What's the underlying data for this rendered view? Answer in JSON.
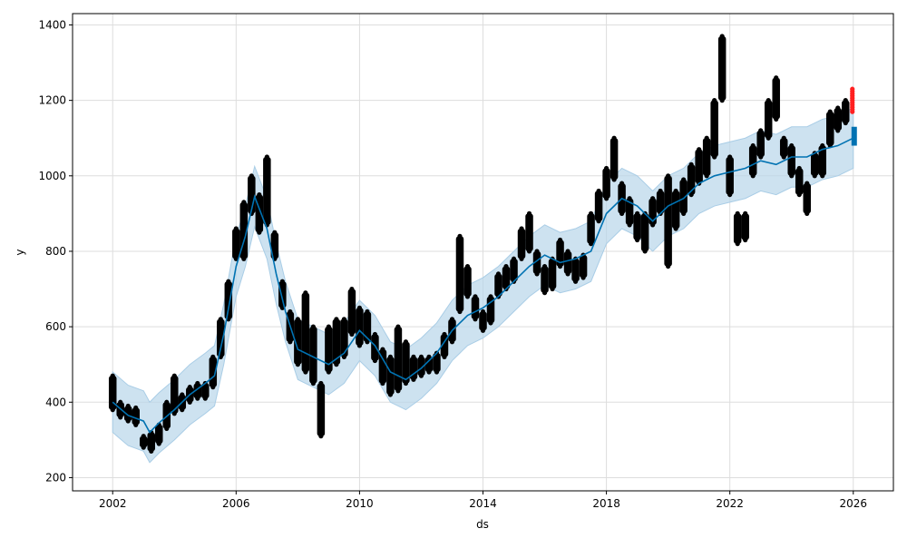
{
  "chart_data": {
    "type": "line",
    "xlabel": "ds",
    "ylabel": "y",
    "xlim": [
      2000.7,
      2027.3
    ],
    "ylim": [
      165,
      1430
    ],
    "xticks": [
      "2002",
      "2006",
      "2010",
      "2014",
      "2018",
      "2022",
      "2026"
    ],
    "yticks": [
      "200",
      "400",
      "600",
      "800",
      "1000",
      "1200",
      "1400"
    ],
    "grid": true,
    "colors": {
      "actual": "#000000",
      "forecast_line": "#0072B2",
      "band": "#b8d6ea",
      "recent_points": "#ff2020"
    },
    "forecast_yhat": [
      [
        2002.0,
        400
      ],
      [
        2002.5,
        365
      ],
      [
        2003.0,
        350
      ],
      [
        2003.2,
        320
      ],
      [
        2003.5,
        345
      ],
      [
        2004.0,
        380
      ],
      [
        2004.5,
        420
      ],
      [
        2005.0,
        450
      ],
      [
        2005.3,
        470
      ],
      [
        2005.6,
        580
      ],
      [
        2006.0,
        760
      ],
      [
        2006.3,
        840
      ],
      [
        2006.6,
        945
      ],
      [
        2007.0,
        860
      ],
      [
        2007.3,
        740
      ],
      [
        2007.6,
        640
      ],
      [
        2008.0,
        540
      ],
      [
        2008.5,
        520
      ],
      [
        2009.0,
        500
      ],
      [
        2009.5,
        530
      ],
      [
        2010.0,
        590
      ],
      [
        2010.5,
        550
      ],
      [
        2011.0,
        480
      ],
      [
        2011.5,
        460
      ],
      [
        2012.0,
        490
      ],
      [
        2012.5,
        530
      ],
      [
        2013.0,
        590
      ],
      [
        2013.5,
        630
      ],
      [
        2014.0,
        650
      ],
      [
        2014.5,
        680
      ],
      [
        2015.0,
        720
      ],
      [
        2015.5,
        760
      ],
      [
        2016.0,
        790
      ],
      [
        2016.5,
        770
      ],
      [
        2017.0,
        780
      ],
      [
        2017.5,
        800
      ],
      [
        2018.0,
        900
      ],
      [
        2018.5,
        940
      ],
      [
        2019.0,
        920
      ],
      [
        2019.5,
        880
      ],
      [
        2020.0,
        920
      ],
      [
        2020.5,
        940
      ],
      [
        2021.0,
        980
      ],
      [
        2021.5,
        1000
      ],
      [
        2022.0,
        1010
      ],
      [
        2022.5,
        1020
      ],
      [
        2023.0,
        1040
      ],
      [
        2023.5,
        1030
      ],
      [
        2024.0,
        1050
      ],
      [
        2024.5,
        1050
      ],
      [
        2025.0,
        1070
      ],
      [
        2025.5,
        1080
      ],
      [
        2026.0,
        1100
      ]
    ],
    "band_halfwidth": 80,
    "actual_ranges": [
      [
        2002.0,
        380,
        470
      ],
      [
        2002.25,
        360,
        400
      ],
      [
        2002.5,
        350,
        390
      ],
      [
        2002.75,
        340,
        385
      ],
      [
        2003.0,
        280,
        310
      ],
      [
        2003.25,
        270,
        320
      ],
      [
        2003.5,
        290,
        340
      ],
      [
        2003.75,
        330,
        400
      ],
      [
        2004.0,
        370,
        470
      ],
      [
        2004.25,
        380,
        420
      ],
      [
        2004.5,
        400,
        440
      ],
      [
        2004.75,
        410,
        450
      ],
      [
        2005.0,
        410,
        450
      ],
      [
        2005.25,
        440,
        520
      ],
      [
        2005.5,
        520,
        620
      ],
      [
        2005.75,
        620,
        720
      ],
      [
        2006.0,
        780,
        860
      ],
      [
        2006.25,
        780,
        930
      ],
      [
        2006.5,
        900,
        1000
      ],
      [
        2006.75,
        850,
        950
      ],
      [
        2007.0,
        870,
        1050
      ],
      [
        2007.25,
        780,
        850
      ],
      [
        2007.5,
        650,
        720
      ],
      [
        2007.75,
        560,
        640
      ],
      [
        2008.0,
        500,
        620
      ],
      [
        2008.25,
        480,
        690
      ],
      [
        2008.5,
        450,
        600
      ],
      [
        2008.75,
        310,
        450
      ],
      [
        2009.0,
        480,
        600
      ],
      [
        2009.25,
        500,
        620
      ],
      [
        2009.5,
        520,
        620
      ],
      [
        2009.75,
        580,
        700
      ],
      [
        2010.0,
        550,
        650
      ],
      [
        2010.25,
        560,
        640
      ],
      [
        2010.5,
        510,
        580
      ],
      [
        2010.75,
        450,
        540
      ],
      [
        2011.0,
        420,
        520
      ],
      [
        2011.25,
        430,
        600
      ],
      [
        2011.5,
        450,
        560
      ],
      [
        2011.75,
        460,
        520
      ],
      [
        2012.0,
        470,
        520
      ],
      [
        2012.25,
        480,
        520
      ],
      [
        2012.5,
        480,
        530
      ],
      [
        2012.75,
        520,
        580
      ],
      [
        2013.0,
        560,
        620
      ],
      [
        2013.25,
        640,
        840
      ],
      [
        2013.5,
        680,
        760
      ],
      [
        2013.75,
        620,
        680
      ],
      [
        2014.0,
        590,
        640
      ],
      [
        2014.25,
        610,
        680
      ],
      [
        2014.5,
        680,
        740
      ],
      [
        2014.75,
        700,
        760
      ],
      [
        2015.0,
        720,
        780
      ],
      [
        2015.25,
        780,
        860
      ],
      [
        2015.5,
        800,
        900
      ],
      [
        2015.75,
        740,
        800
      ],
      [
        2016.0,
        690,
        760
      ],
      [
        2016.25,
        700,
        780
      ],
      [
        2016.5,
        760,
        830
      ],
      [
        2016.75,
        740,
        800
      ],
      [
        2017.0,
        720,
        780
      ],
      [
        2017.25,
        730,
        790
      ],
      [
        2017.5,
        820,
        900
      ],
      [
        2017.75,
        880,
        960
      ],
      [
        2018.0,
        940,
        1020
      ],
      [
        2018.25,
        990,
        1100
      ],
      [
        2018.5,
        900,
        980
      ],
      [
        2018.75,
        870,
        940
      ],
      [
        2019.0,
        830,
        900
      ],
      [
        2019.25,
        800,
        900
      ],
      [
        2019.5,
        870,
        940
      ],
      [
        2019.75,
        900,
        960
      ],
      [
        2020.0,
        760,
        1000
      ],
      [
        2020.25,
        860,
        960
      ],
      [
        2020.5,
        900,
        990
      ],
      [
        2020.75,
        950,
        1030
      ],
      [
        2021.0,
        980,
        1070
      ],
      [
        2021.25,
        1000,
        1100
      ],
      [
        2021.5,
        1050,
        1200
      ],
      [
        2021.75,
        1200,
        1370
      ],
      [
        2022.0,
        950,
        1050
      ],
      [
        2022.25,
        820,
        900
      ],
      [
        2022.5,
        830,
        900
      ],
      [
        2022.75,
        1000,
        1080
      ],
      [
        2023.0,
        1050,
        1120
      ],
      [
        2023.25,
        1100,
        1200
      ],
      [
        2023.5,
        1150,
        1260
      ],
      [
        2023.75,
        1050,
        1100
      ],
      [
        2024.0,
        1000,
        1080
      ],
      [
        2024.25,
        950,
        1020
      ],
      [
        2024.5,
        900,
        980
      ],
      [
        2024.75,
        1000,
        1060
      ],
      [
        2025.0,
        1000,
        1080
      ],
      [
        2025.25,
        1080,
        1170
      ],
      [
        2025.5,
        1120,
        1180
      ],
      [
        2025.75,
        1140,
        1200
      ]
    ],
    "recent_points_range": [
      2025.97,
      1170,
      1235
    ],
    "future_yhat_range": [
      2026.0,
      1080,
      1130
    ]
  }
}
